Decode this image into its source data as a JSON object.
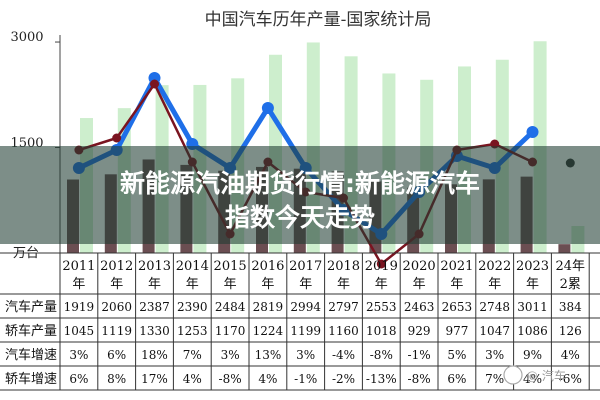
{
  "chart_data": {
    "type": "bar",
    "title": "中国汽车历年产量-国家统计局",
    "y_unit": "万台",
    "y_ticks": [
      "3000",
      "1500"
    ],
    "ylim": [
      0,
      3100
    ],
    "categories": [
      [
        "2011",
        "年"
      ],
      [
        "2012",
        "年"
      ],
      [
        "2013",
        "年"
      ],
      [
        "2014",
        "年"
      ],
      [
        "2015",
        "年"
      ],
      [
        "2016",
        "年"
      ],
      [
        "2017",
        "年"
      ],
      [
        "2018",
        "年"
      ],
      [
        "2019",
        "年"
      ],
      [
        "2020",
        "年"
      ],
      [
        "2021",
        "年"
      ],
      [
        "2022",
        "年"
      ],
      [
        "2023",
        "年"
      ],
      [
        "24年",
        "2累"
      ]
    ],
    "series": [
      {
        "name": "汽车产量",
        "type": "bar",
        "color": "#cdeecd",
        "values": [
          1919,
          2060,
          2387,
          2390,
          2484,
          2819,
          2994,
          2797,
          2553,
          2463,
          2653,
          2748,
          3011,
          384
        ]
      },
      {
        "name": "轿车产量",
        "type": "bar",
        "color": "#6b4e52",
        "values": [
          1045,
          1119,
          1330,
          1253,
          1170,
          1224,
          1199,
          1160,
          1018,
          929,
          977,
          1047,
          1086,
          126
        ]
      },
      {
        "name": "汽车增速",
        "type": "line",
        "color": "#1f6fe8",
        "axis": "right",
        "values": [
          3,
          6,
          18,
          7,
          3,
          13,
          3,
          -4,
          -8,
          -1,
          5,
          3,
          9,
          4
        ],
        "labels": [
          "3%",
          "6%",
          "18%",
          "7%",
          "3%",
          "13%",
          "3%",
          "-4%",
          "-8%",
          "-1%",
          "5%",
          "3%",
          "9%",
          "4%"
        ]
      },
      {
        "name": "轿车增速",
        "type": "line",
        "color": "#7a1420",
        "axis": "right",
        "values": [
          6,
          8,
          17,
          4,
          -8,
          4,
          -1,
          -2,
          -13,
          -8,
          6,
          7,
          4,
          -6
        ],
        "labels": [
          "6%",
          "8%",
          "17%",
          "4%",
          "-8%",
          "4%",
          "-1%",
          "-2%",
          "-13%",
          "-8%",
          "6%",
          "7%",
          "4%",
          "-6%"
        ]
      }
    ]
  },
  "banner": {
    "line1": "新能源汽油期货行情:新能源汽车",
    "line2": "指数今天走势"
  },
  "watermark": "@ 汽车"
}
